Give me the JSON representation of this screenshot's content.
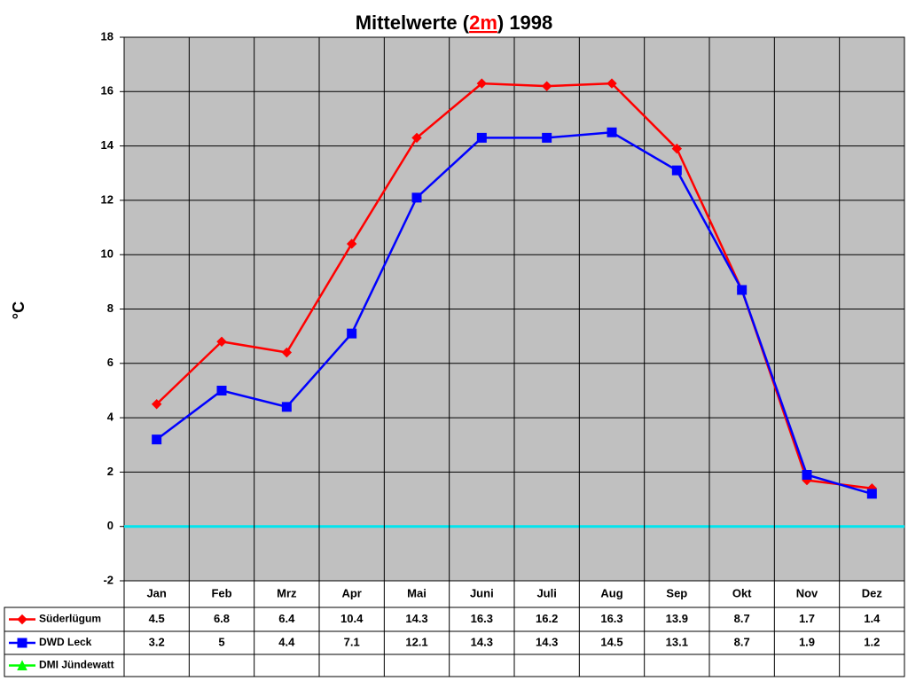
{
  "chart_data": {
    "type": "line",
    "title": [
      "Mittelwerte (",
      "2m",
      ") 1998"
    ],
    "y_label": "°C",
    "categories": [
      "Jan",
      "Feb",
      "Mrz",
      "Apr",
      "Mai",
      "Juni",
      "Juli",
      "Aug",
      "Sep",
      "Okt",
      "Nov",
      "Dez"
    ],
    "series": [
      {
        "name": "Süderlügum",
        "color": "#ff0000",
        "marker": "diamond",
        "values": [
          4.5,
          6.8,
          6.4,
          10.4,
          14.3,
          16.3,
          16.2,
          16.3,
          13.9,
          8.7,
          1.7,
          1.4
        ]
      },
      {
        "name": "DWD Leck",
        "color": "#0000ff",
        "marker": "square",
        "values": [
          3.2,
          5,
          4.4,
          7.1,
          12.1,
          14.3,
          14.3,
          14.5,
          13.1,
          8.7,
          1.9,
          1.2
        ]
      },
      {
        "name": "DMI Jündewatt",
        "color": "#00ff00",
        "marker": "triangle",
        "values": [
          null,
          null,
          null,
          null,
          null,
          null,
          null,
          null,
          null,
          null,
          null,
          null
        ]
      }
    ],
    "ylim": [
      -2,
      18
    ],
    "yticks": [
      -2,
      0,
      2,
      4,
      6,
      8,
      10,
      12,
      14,
      16,
      18
    ],
    "grid": true,
    "zero_line_color": "#00e5ee",
    "plot_background": "#c0c0c0"
  }
}
